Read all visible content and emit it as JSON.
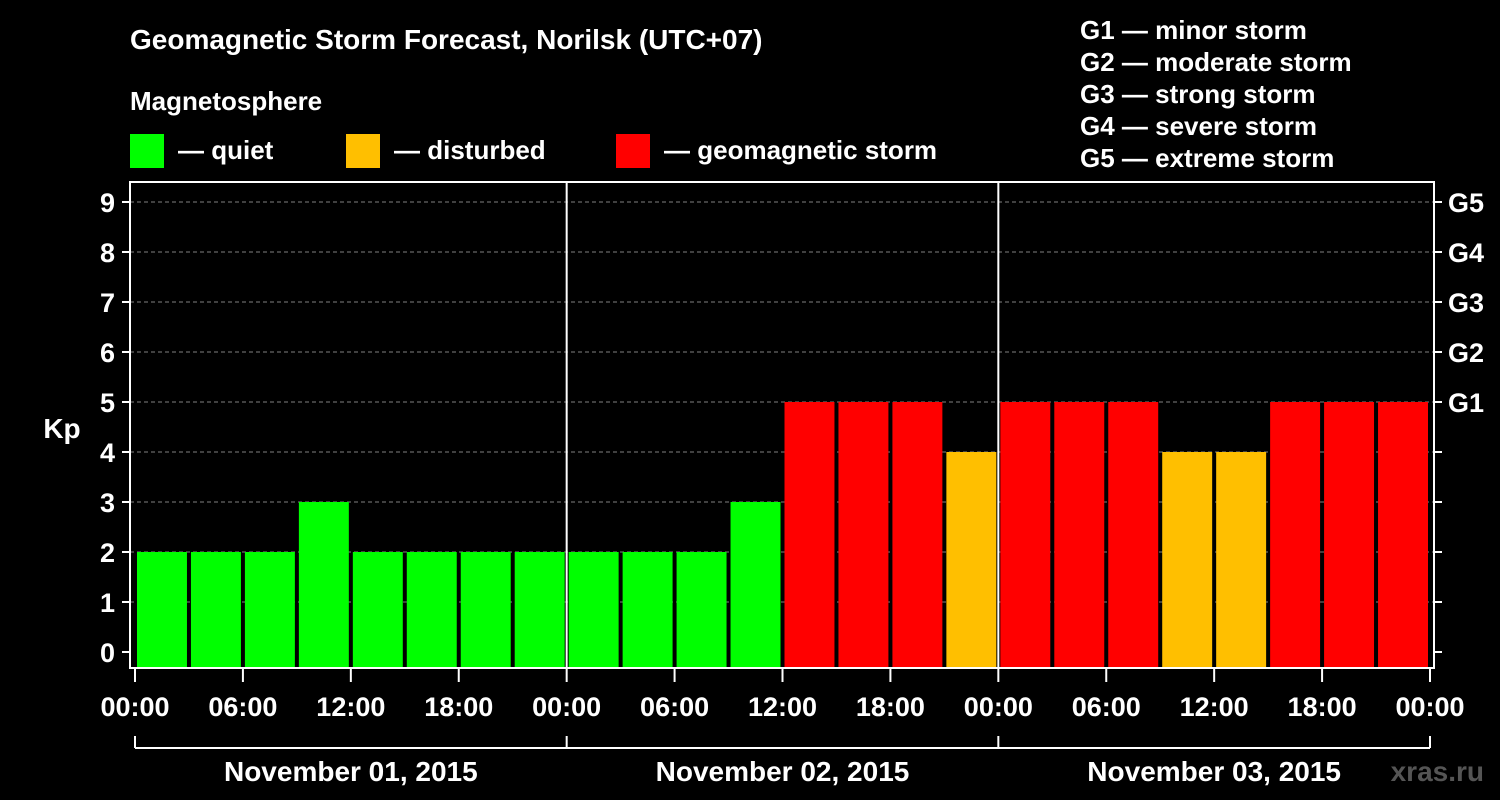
{
  "chart_data": {
    "type": "bar",
    "title": "Geomagnetic Storm Forecast, Norilsk (UTC+07)",
    "subtitle": "Magnetosphere",
    "ylabel": "Kp",
    "ylim": [
      0,
      9
    ],
    "y_ticks": [
      "0",
      "1",
      "2",
      "3",
      "4",
      "5",
      "6",
      "7",
      "8",
      "9"
    ],
    "g_scale": [
      {
        "level": "G1",
        "kp": 5
      },
      {
        "level": "G2",
        "kp": 6
      },
      {
        "level": "G3",
        "kp": 7
      },
      {
        "level": "G4",
        "kp": 8
      },
      {
        "level": "G5",
        "kp": 9
      }
    ],
    "legend": [
      {
        "label": "— quiet",
        "color": "#00FF00"
      },
      {
        "label": "— disturbed",
        "color": "#FFBF00"
      },
      {
        "label": "— geomagnetic storm",
        "color": "#FF0000"
      }
    ],
    "g_descriptions": [
      "G1 — minor storm",
      "G2 — moderate storm",
      "G3 — strong storm",
      "G4 — severe storm",
      "G5 — extreme storm"
    ],
    "x_tick_labels": [
      "00:00",
      "06:00",
      "12:00",
      "18:00",
      "00:00",
      "06:00",
      "12:00",
      "18:00",
      "00:00",
      "06:00",
      "12:00",
      "18:00",
      "00:00"
    ],
    "days": [
      "November 01, 2015",
      "November 02, 2015",
      "November 03, 2015"
    ],
    "series": [
      {
        "values": [
          2,
          2,
          2,
          2,
          3,
          2,
          2,
          2,
          2,
          2,
          2,
          2,
          3,
          5,
          5,
          5,
          4,
          5,
          5,
          5,
          4,
          4,
          5,
          5,
          5
        ]
      }
    ],
    "bar_colors": [
      "#00FF00",
      "#00FF00",
      "#00FF00",
      "#00FF00",
      "#00FF00",
      "#00FF00",
      "#00FF00",
      "#00FF00",
      "#00FF00",
      "#00FF00",
      "#00FF00",
      "#00FF00",
      "#00FF00",
      "#FF0000",
      "#FF0000",
      "#FF0000",
      "#FFBF00",
      "#FF0000",
      "#FF0000",
      "#FF0000",
      "#FFBF00",
      "#FFBF00",
      "#FF0000",
      "#FF0000",
      "#FF0000"
    ],
    "grid": true,
    "watermark": "xras.ru"
  }
}
